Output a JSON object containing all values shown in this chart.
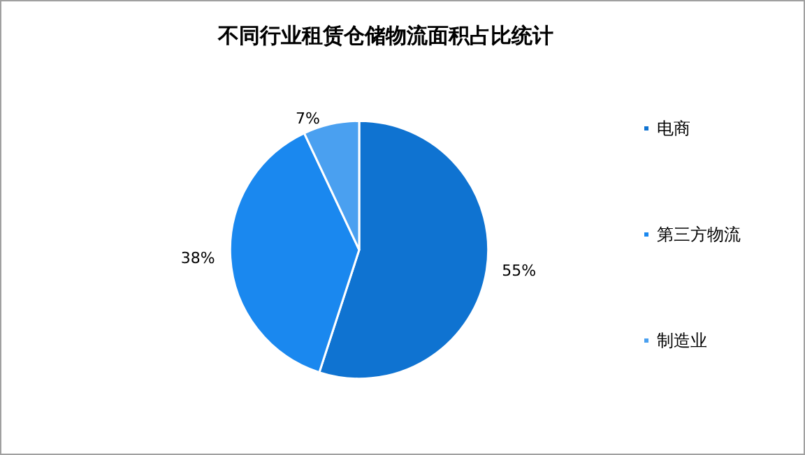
{
  "chart_data": {
    "type": "pie",
    "title": "不同行业租赁仓储物流面积占比统计",
    "categories": [
      "电商",
      "第三方物流",
      "制造业"
    ],
    "values": [
      55,
      38,
      7
    ],
    "value_labels": [
      "55%",
      "38%",
      "7%"
    ],
    "colors": [
      "#0f73d1",
      "#1a88ef",
      "#4aa0f0"
    ],
    "legend": "right"
  }
}
